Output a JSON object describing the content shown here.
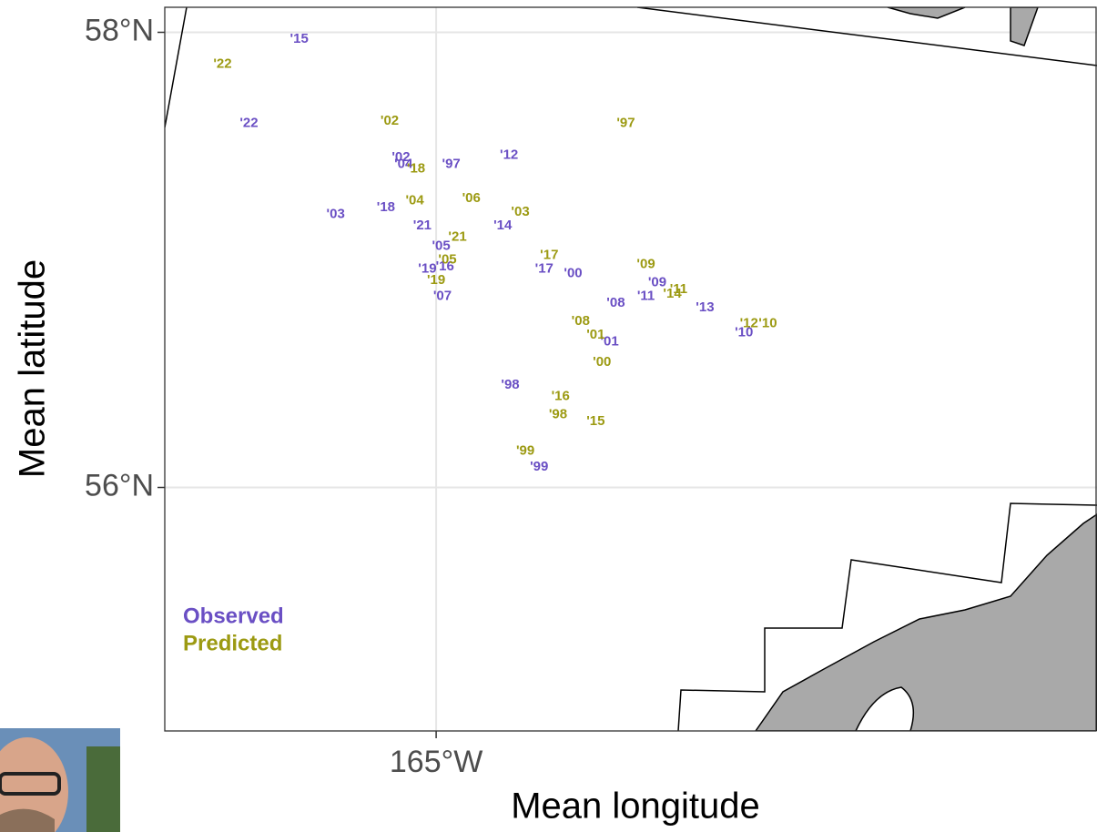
{
  "chart_data": {
    "type": "text-scatter",
    "x_label": "Mean longitude",
    "y_label": "Mean latitude",
    "xlim": [
      -167.16,
      -159.74
    ],
    "ylim": [
      54.93,
      58.11
    ],
    "xticks": [
      {
        "value": -165,
        "label": "165°W"
      }
    ],
    "yticks": [
      {
        "value": 56,
        "label": "56°N"
      },
      {
        "value": 58,
        "label": "58°N"
      }
    ],
    "grid": true,
    "legend": "bottom-left",
    "series": [
      {
        "name": "Observed",
        "color": "#6a4fc4",
        "labels": [
          "'15",
          "'22",
          "'02",
          "'04",
          "'97",
          "'12",
          "'03",
          "'18",
          "'21",
          "'14",
          "'05",
          "'19",
          "'16",
          "'07",
          "'17",
          "'00",
          "'08",
          "'11",
          "'09",
          "'13",
          "'10",
          "'01",
          "'98",
          "'99"
        ],
        "x": [
          -166.09,
          -166.49,
          -165.28,
          -165.26,
          -164.88,
          -164.42,
          -165.8,
          -165.4,
          -165.11,
          -164.47,
          -164.96,
          -165.07,
          -164.93,
          -164.95,
          -164.14,
          -163.91,
          -163.57,
          -163.33,
          -163.24,
          -162.86,
          -162.55,
          -163.62,
          -164.41,
          -164.18
        ],
        "values": [
          57.97,
          57.6,
          57.45,
          57.42,
          57.42,
          57.46,
          57.2,
          57.23,
          57.15,
          57.15,
          57.06,
          56.96,
          56.97,
          56.84,
          56.96,
          56.94,
          56.81,
          56.84,
          56.9,
          56.79,
          56.68,
          56.64,
          56.45,
          56.09
        ]
      },
      {
        "name": "Predicted",
        "color": "#9c9a12",
        "labels": [
          "'22",
          "'02",
          "'97",
          "'18",
          "'04",
          "'06",
          "'03",
          "'21",
          "'05",
          "'19",
          "'17",
          "'09",
          "'11",
          "'14",
          "'08",
          "'01",
          "'12",
          "'10",
          "'00",
          "'16",
          "'98",
          "'15",
          "'99"
        ],
        "x": [
          -166.7,
          -165.37,
          -163.49,
          -165.16,
          -165.17,
          -164.72,
          -164.33,
          -164.83,
          -164.91,
          -165.0,
          -164.1,
          -163.33,
          -163.07,
          -163.12,
          -163.85,
          -163.73,
          -162.51,
          -162.36,
          -163.68,
          -164.01,
          -164.03,
          -163.73,
          -164.29
        ],
        "values": [
          57.86,
          57.61,
          57.6,
          57.4,
          57.26,
          57.27,
          57.21,
          57.1,
          57.0,
          56.91,
          57.02,
          56.98,
          56.87,
          56.85,
          56.73,
          56.67,
          56.72,
          56.72,
          56.55,
          56.4,
          56.32,
          56.29,
          56.16
        ]
      }
    ]
  }
}
